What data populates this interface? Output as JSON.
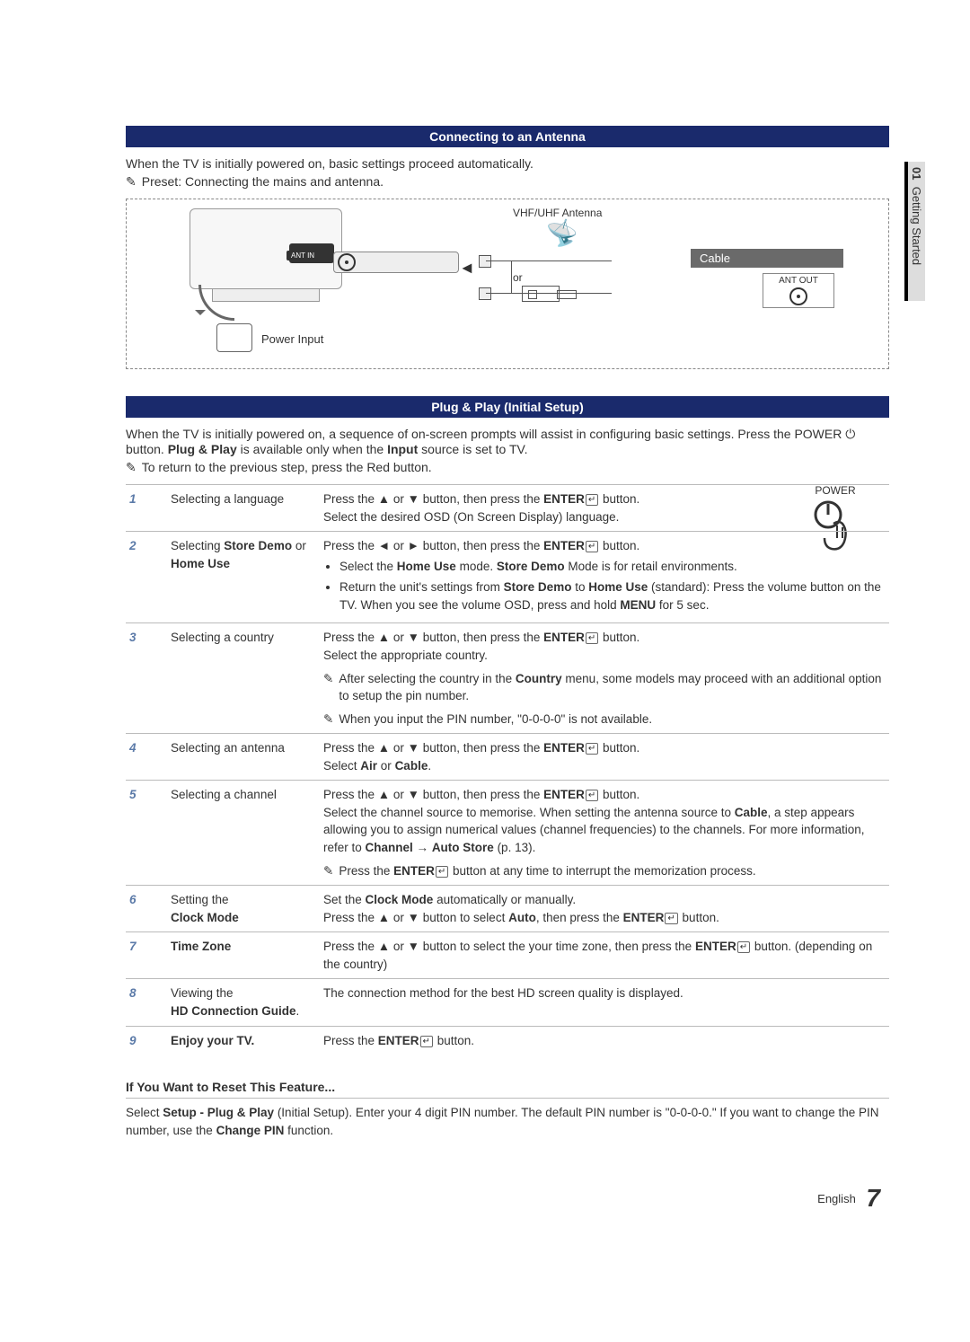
{
  "side_tab": {
    "chapter": "01",
    "title": "Getting Started"
  },
  "sec1": {
    "header": "Connecting to an Antenna",
    "intro": "When the TV is initially powered on, basic settings proceed automatically.",
    "note": "Preset: Connecting the mains and antenna.",
    "diagram": {
      "vhf_label": "VHF/UHF Antenna",
      "cable_label": "Cable",
      "ant_out": "ANT OUT",
      "ant_in": "ANT IN",
      "or": "or",
      "power_input": "Power Input"
    }
  },
  "sec2": {
    "header": "Plug & Play (Initial Setup)",
    "intro_a": "When the TV is initially powered on, a sequence of on-screen prompts will assist in configuring basic settings. Press the POWER ",
    "intro_b": " button. ",
    "intro_bold": "Plug & Play",
    "intro_c": " is available only when the ",
    "intro_bold2": "Input",
    "intro_d": " source is set to TV.",
    "note": "To return to the previous step, press the Red button.",
    "power_label": "POWER"
  },
  "steps": [
    {
      "n": "1",
      "title": "Selecting a language",
      "body_html": "Press the ▲ or ▼ button, then press the <b>ENTER</b><span class=\"enter-icon\"></span> button.<br>Select the desired OSD (On Screen Display) language."
    },
    {
      "n": "2",
      "title_html": "Selecting <b>Store Demo</b> or <b>Home Use</b>",
      "body_html": "Press the ◄ or ► button, then press the <b>ENTER</b><span class=\"enter-icon\"></span> button.<ul class=\"bul\"><li>Select the <b>Home Use</b> mode. <b>Store Demo</b> Mode is for retail environments.</li><li>Return the unit's settings from <b>Store Demo</b> to <b>Home Use</b> (standard): Press the volume button on the TV. When you see the volume OSD, press and hold <b>MENU</b> for 5 sec.</li></ul>"
    },
    {
      "n": "3",
      "title": "Selecting a country",
      "body_html": "Press the ▲ or ▼ button, then press the <b>ENTER</b><span class=\"enter-icon\"></span> button.<br>Select the appropriate country.<div class=\"sub-note\"><span class=\"ni\"></span><span>After selecting the country in the <b>Country</b> menu, some models may proceed with an additional option to setup the pin number.</span></div><div class=\"sub-note\"><span class=\"ni\"></span><span>When you input the PIN number, \"0-0-0-0\" is not available.</span></div>"
    },
    {
      "n": "4",
      "title": "Selecting an antenna",
      "body_html": "Press the ▲ or ▼ button, then press the <b>ENTER</b><span class=\"enter-icon\"></span> button.<br>Select <b>Air</b> or <b>Cable</b>."
    },
    {
      "n": "5",
      "title": "Selecting a channel",
      "body_html": "Press the ▲ or ▼ button, then press the <b>ENTER</b><span class=\"enter-icon\"></span> button.<br>Select the channel source to memorise. When setting the antenna source to <b>Cable</b>, a step appears allowing you to assign numerical values (channel frequencies) to the channels. For more information, refer to <b>Channel</b> → <b>Auto Store</b> (p. 13).<div class=\"sub-note\"><span class=\"ni\"></span><span>Press the <b>ENTER</b><span class=\"enter-icon\"></span> button at any time to interrupt the memorization process.</span></div>"
    },
    {
      "n": "6",
      "title_html": "Setting the<br><b>Clock Mode</b>",
      "body_html": "Set the <b>Clock Mode</b> automatically or manually.<br>Press the ▲ or ▼ button to select <b>Auto</b>, then press the <b>ENTER</b><span class=\"enter-icon\"></span> button."
    },
    {
      "n": "7",
      "title_html": "<b>Time Zone</b>",
      "body_html": "Press the ▲ or ▼ button to select the your time zone, then press the <b>ENTER</b><span class=\"enter-icon\"></span> button. (depending on the country)"
    },
    {
      "n": "8",
      "title_html": "Viewing the<br><b>HD Connection Guide</b>.",
      "body_html": "The connection method for the best HD screen quality is displayed."
    },
    {
      "n": "9",
      "title_html": "<b>Enjoy your TV.</b>",
      "body_html": "Press the <b>ENTER</b><span class=\"enter-icon\"></span> button."
    }
  ],
  "reset": {
    "heading": "If You Want to Reset This Feature...",
    "body_html": "Select <b>Setup - Plug & Play</b> (Initial Setup). Enter your 4 digit PIN number. The default PIN number is \"0-0-0-0.\" If you want to change the PIN number, use the <b>Change PIN</b> function."
  },
  "footer": {
    "lang": "English",
    "page": "7"
  },
  "colors": {
    "header_bg": "#1a2a6c",
    "step_num": "#5b7aa8",
    "cable_bar": "#6a6a6a",
    "rule": "#bbbbbb"
  }
}
